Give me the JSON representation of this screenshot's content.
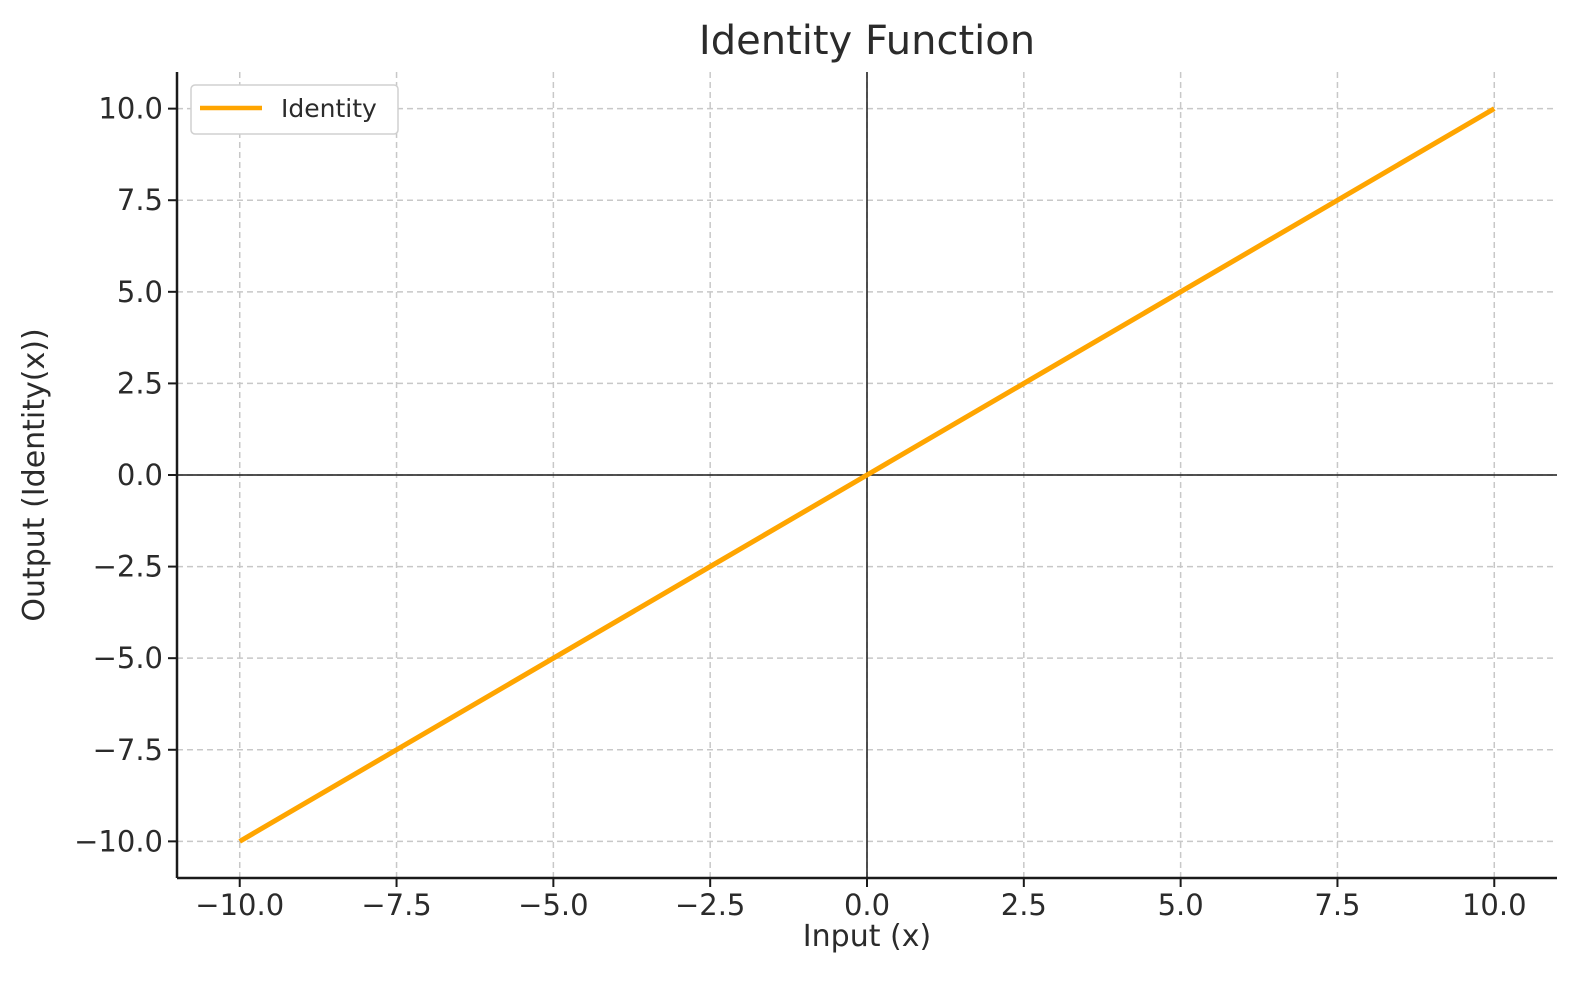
{
  "chart_data": {
    "type": "line",
    "title": "Identity Function",
    "xlabel": "Input (x)",
    "ylabel": "Output (Identity(x))",
    "xlim": [
      -11,
      11
    ],
    "ylim": [
      -11,
      11
    ],
    "x_ticks": [
      -10.0,
      -7.5,
      -5.0,
      -2.5,
      0.0,
      2.5,
      5.0,
      7.5,
      10.0
    ],
    "y_ticks": [
      -10.0,
      -7.5,
      -5.0,
      -2.5,
      0.0,
      2.5,
      5.0,
      7.5,
      10.0
    ],
    "x_tick_labels": [
      "−10.0",
      "−7.5",
      "−5.0",
      "−2.5",
      "0.0",
      "2.5",
      "5.0",
      "7.5",
      "10.0"
    ],
    "y_tick_labels": [
      "−10.0",
      "−7.5",
      "−5.0",
      "−2.5",
      "0.0",
      "2.5",
      "5.0",
      "7.5",
      "10.0"
    ],
    "grid": true,
    "zero_lines": true,
    "legend_position": "top-left",
    "series": [
      {
        "name": "Identity",
        "color": "#ffa500",
        "x": [
          -10.0,
          -7.5,
          -5.0,
          -2.5,
          0.0,
          2.5,
          5.0,
          7.5,
          10.0
        ],
        "y": [
          -10.0,
          -7.5,
          -5.0,
          -2.5,
          0.0,
          2.5,
          5.0,
          7.5,
          10.0
        ]
      }
    ]
  }
}
